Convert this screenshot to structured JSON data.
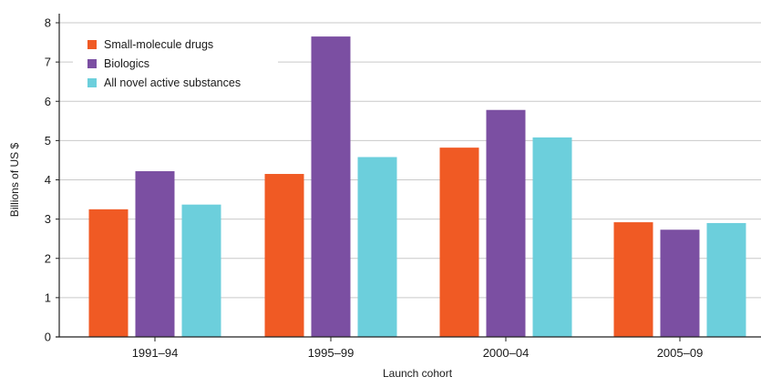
{
  "chart_data": {
    "type": "bar",
    "title": "",
    "xlabel": "Launch cohort",
    "ylabel": "Billions of US $",
    "ylim": [
      0,
      8
    ],
    "yticks": [
      0,
      1,
      2,
      3,
      4,
      5,
      6,
      7,
      8
    ],
    "categories": [
      "1991–94",
      "1995–99",
      "2000–04",
      "2005–09"
    ],
    "series": [
      {
        "name": "Small-molecule drugs",
        "color": "#f05a24",
        "values": [
          3.25,
          4.15,
          4.82,
          2.92
        ]
      },
      {
        "name": "Biologics",
        "color": "#7b4fa2",
        "values": [
          4.22,
          7.65,
          5.78,
          2.73
        ]
      },
      {
        "name": "All novel active substances",
        "color": "#6ccfdc",
        "values": [
          3.37,
          4.58,
          5.08,
          2.9
        ]
      }
    ],
    "grid": true,
    "legend_position": "top-left"
  }
}
